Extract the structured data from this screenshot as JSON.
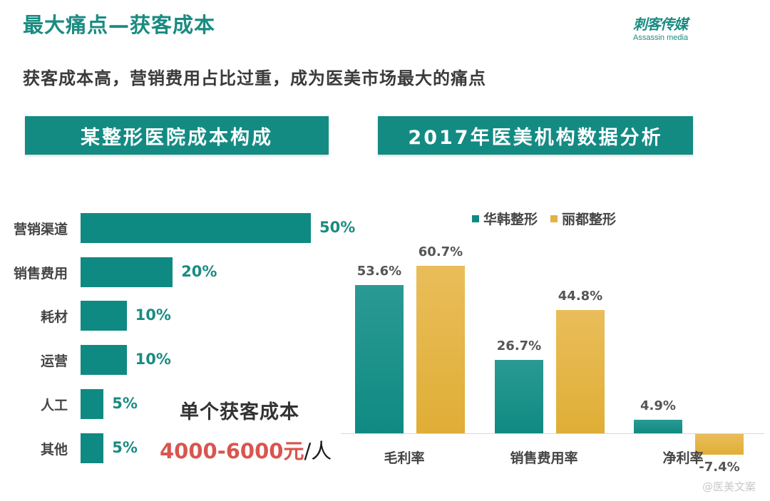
{
  "header": {
    "title": "最大痛点—获客成本",
    "subtitle": "获客成本高，营销费用占比过重，成为医美市场最大的痛点",
    "logo": {
      "cn": "刺客传媒",
      "en": "Assassin media"
    }
  },
  "sections": {
    "left_title": "某整形医院成本构成",
    "right_title": "2017年医美机构数据分析"
  },
  "cost_callout": {
    "label": "单个获客成本",
    "value": "4000-6000元",
    "unit": "/人"
  },
  "watermark": "@医美文案",
  "colors": {
    "teal": "#0f8a82",
    "gold": "#e3b23f",
    "accent_red": "#d9554f",
    "title_teal": "#1a8b82"
  },
  "chart_data": [
    {
      "type": "bar",
      "orientation": "horizontal",
      "title": "某整形医院成本构成",
      "categories": [
        "营销渠道",
        "销售费用",
        "耗材",
        "运营",
        "人工",
        "其他"
      ],
      "values": [
        50,
        20,
        10,
        10,
        5,
        5
      ],
      "labels": [
        "50%",
        "20%",
        "10%",
        "10%",
        "5%",
        "5%"
      ],
      "unit": "%",
      "xlabel": "",
      "ylabel": "",
      "grid": false
    },
    {
      "type": "bar",
      "orientation": "vertical",
      "title": "2017年医美机构数据分析",
      "categories": [
        "毛利率",
        "销售费用率",
        "净利率"
      ],
      "series": [
        {
          "name": "华韩整形",
          "color": "#0f8a82",
          "values": [
            53.6,
            26.7,
            4.9
          ],
          "labels": [
            "53.6%",
            "26.7%",
            "4.9%"
          ]
        },
        {
          "name": "丽都整形",
          "color": "#e3b23f",
          "values": [
            60.7,
            44.8,
            -7.4
          ],
          "labels": [
            "60.7%",
            "44.8%",
            "-7.4%"
          ]
        }
      ],
      "unit": "%",
      "legend_position": "top-right",
      "grid": false,
      "xlabel": "",
      "ylabel": ""
    }
  ]
}
